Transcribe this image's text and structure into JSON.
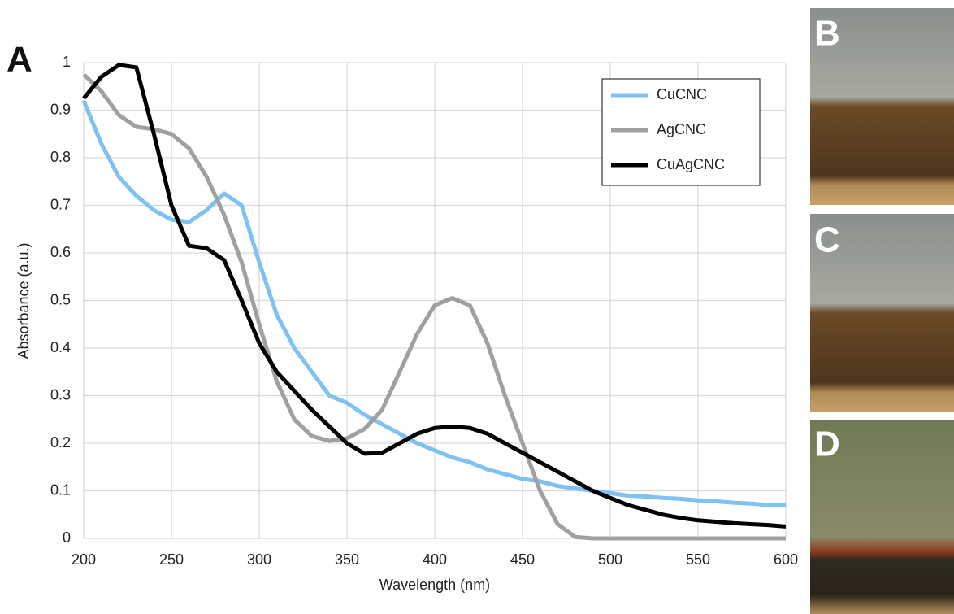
{
  "chart_data": {
    "type": "line",
    "panel_label": "A",
    "xlabel": "Wavelength (nm)",
    "ylabel": "Absorbance (a.u.)",
    "x": [
      200,
      210,
      220,
      230,
      240,
      250,
      260,
      270,
      280,
      290,
      300,
      310,
      320,
      330,
      340,
      350,
      360,
      370,
      380,
      390,
      400,
      410,
      420,
      430,
      440,
      450,
      460,
      470,
      480,
      490,
      500,
      510,
      520,
      530,
      540,
      550,
      560,
      570,
      580,
      590,
      600
    ],
    "series": [
      {
        "name": "CuCNC",
        "color": "#7fc1f0",
        "values": [
          0.92,
          0.83,
          0.76,
          0.72,
          0.69,
          0.67,
          0.665,
          0.69,
          0.725,
          0.7,
          0.58,
          0.47,
          0.4,
          0.35,
          0.3,
          0.285,
          0.26,
          0.24,
          0.22,
          0.2,
          0.185,
          0.17,
          0.16,
          0.145,
          0.135,
          0.125,
          0.12,
          0.11,
          0.105,
          0.1,
          0.095,
          0.09,
          0.088,
          0.085,
          0.083,
          0.08,
          0.078,
          0.075,
          0.073,
          0.07,
          0.07
        ]
      },
      {
        "name": "AgCNC",
        "color": "#a0a0a0",
        "values": [
          0.975,
          0.94,
          0.89,
          0.865,
          0.86,
          0.85,
          0.82,
          0.76,
          0.68,
          0.58,
          0.45,
          0.33,
          0.25,
          0.215,
          0.205,
          0.21,
          0.23,
          0.27,
          0.35,
          0.43,
          0.49,
          0.505,
          0.49,
          0.41,
          0.3,
          0.2,
          0.1,
          0.03,
          0.003,
          0,
          0,
          0,
          0,
          0,
          0,
          0,
          0,
          0,
          0,
          0,
          0
        ]
      },
      {
        "name": "CuAgCNC",
        "color": "#000000",
        "values": [
          0.925,
          0.97,
          0.995,
          0.99,
          0.85,
          0.7,
          0.615,
          0.61,
          0.585,
          0.5,
          0.41,
          0.35,
          0.31,
          0.27,
          0.235,
          0.2,
          0.178,
          0.18,
          0.2,
          0.22,
          0.232,
          0.235,
          0.232,
          0.22,
          0.2,
          0.18,
          0.16,
          0.14,
          0.12,
          0.1,
          0.085,
          0.07,
          0.06,
          0.05,
          0.043,
          0.038,
          0.035,
          0.032,
          0.03,
          0.028,
          0.025
        ]
      }
    ],
    "xlim": [
      200,
      600
    ],
    "xticks": [
      200,
      250,
      300,
      350,
      400,
      450,
      500,
      550,
      600
    ],
    "ylim": [
      0,
      1
    ],
    "yticks": [
      0,
      0.1,
      0.2,
      0.3,
      0.4,
      0.5,
      0.6,
      0.7,
      0.8,
      0.9,
      1
    ],
    "grid": true
  },
  "photos": [
    {
      "label": "B"
    },
    {
      "label": "C"
    },
    {
      "label": "D"
    }
  ]
}
